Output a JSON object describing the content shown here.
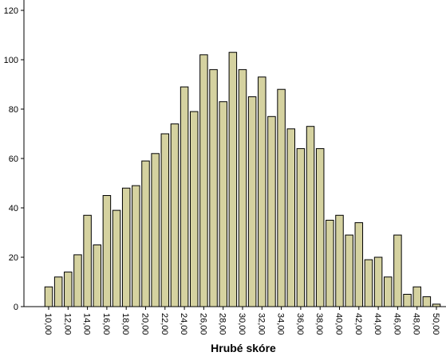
{
  "chart_data": {
    "type": "bar",
    "title": "",
    "xlabel": "Hrubé skóre",
    "ylabel": "",
    "ylim": [
      0,
      120
    ],
    "y_ticks": [
      0,
      20,
      40,
      60,
      80,
      100,
      120
    ],
    "x_tick_labels": [
      "10,00",
      "12,00",
      "14,00",
      "16,00",
      "18,00",
      "20,00",
      "22,00",
      "24,00",
      "26,00",
      "28,00",
      "30,00",
      "32,00",
      "34,00",
      "36,00",
      "38,00",
      "40,00",
      "42,00",
      "44,00",
      "46,00",
      "48,00",
      "50,00"
    ],
    "categories": [
      10,
      11,
      12,
      13,
      14,
      15,
      16,
      17,
      18,
      19,
      20,
      21,
      22,
      23,
      24,
      25,
      26,
      27,
      28,
      29,
      30,
      31,
      32,
      33,
      34,
      35,
      36,
      37,
      38,
      39,
      40,
      41,
      42,
      43,
      44,
      45,
      46,
      47,
      48,
      49,
      50
    ],
    "values": [
      8,
      12,
      14,
      21,
      37,
      25,
      45,
      39,
      48,
      49,
      59,
      62,
      70,
      74,
      89,
      79,
      102,
      96,
      83,
      103,
      96,
      85,
      93,
      77,
      88,
      72,
      64,
      73,
      64,
      35,
      37,
      29,
      34,
      19,
      20,
      12,
      29,
      5,
      8,
      4,
      1
    ],
    "grid": false,
    "colors": {
      "bar_fill": "#d5d2a0",
      "bar_stroke": "#000000"
    }
  }
}
